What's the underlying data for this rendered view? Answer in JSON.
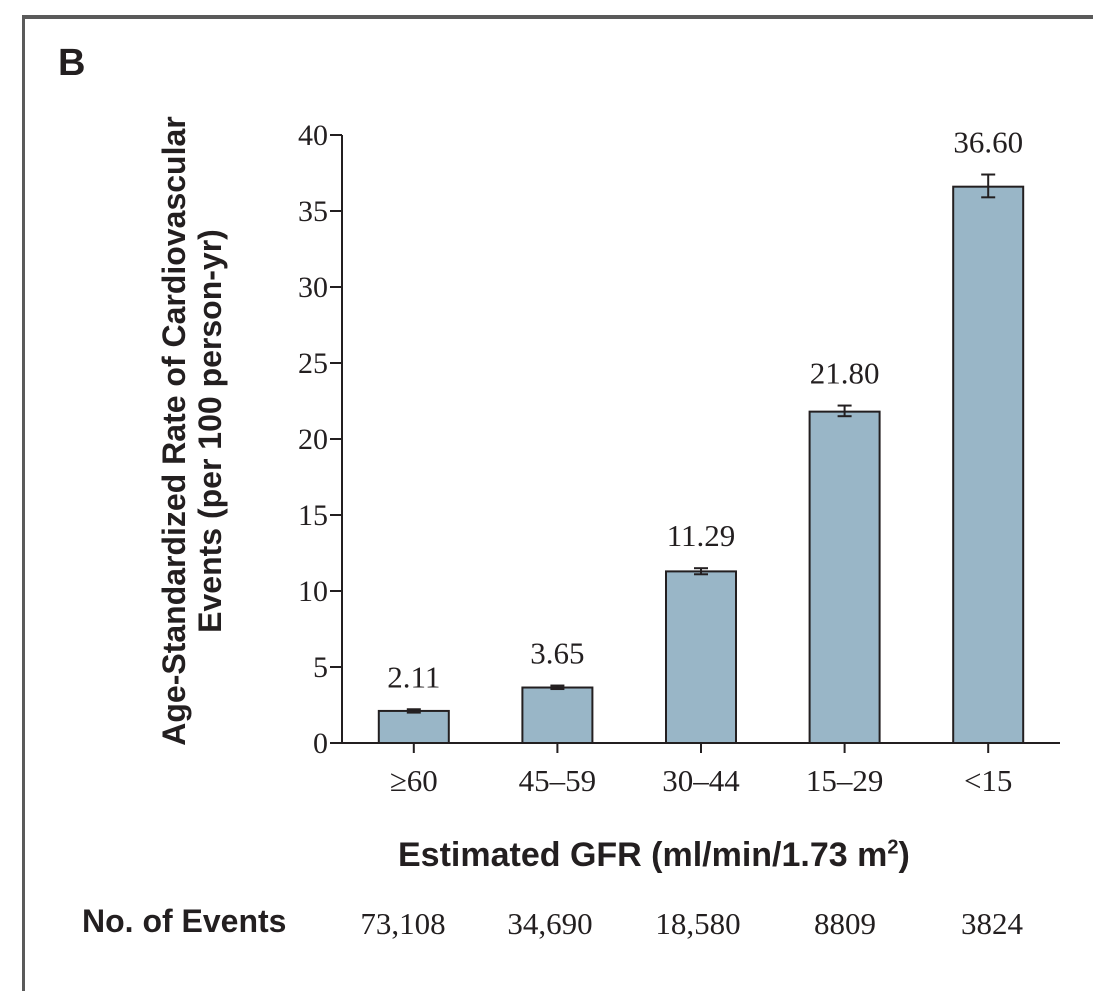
{
  "panel_letter": "B",
  "chart_data": {
    "type": "bar",
    "categories": [
      "≥60",
      "45–59",
      "30–44",
      "15–29",
      "<15"
    ],
    "series": [
      {
        "values": [
          2.11,
          3.65,
          11.29,
          21.8,
          36.6
        ],
        "value_labels": [
          "2.11",
          "3.65",
          "11.29",
          "21.80",
          "36.60"
        ],
        "error_low": [
          2.0,
          3.55,
          11.1,
          21.5,
          35.9
        ],
        "error_high": [
          2.22,
          3.78,
          11.5,
          22.2,
          37.4
        ]
      }
    ],
    "ylabel_lines": [
      "Age-Standardized Rate of Cardiovascular",
      "Events (per 100 person-yr)"
    ],
    "xlabel": "Estimated GFR (ml/min/1.73 m",
    "xlabel_sup": "2",
    "xlabel_end": ")",
    "ylim": [
      0,
      40
    ],
    "yticks": [
      0,
      5,
      10,
      15,
      20,
      25,
      30,
      35,
      40
    ],
    "bar_color": "#99b6c7",
    "grid": false,
    "legend": "none"
  },
  "events_row": {
    "label": "No. of Events",
    "values": [
      "73,108",
      "34,690",
      "18,580",
      "8809",
      "3824"
    ]
  }
}
